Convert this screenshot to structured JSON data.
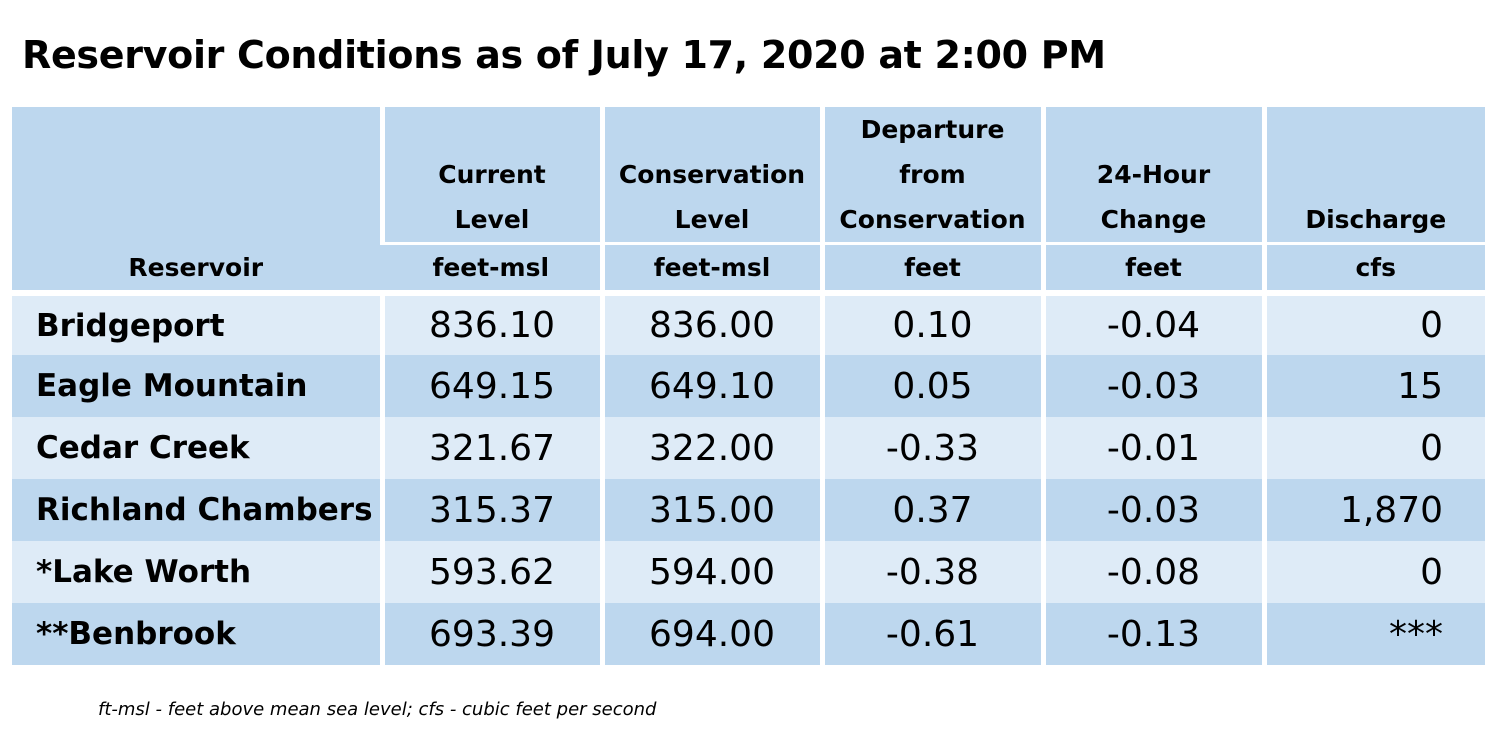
{
  "title": "Reservoir Conditions as of July 17, 2020 at 2:00 PM",
  "table": {
    "headers": [
      {
        "lines": [
          "Reservoir"
        ],
        "unit": ""
      },
      {
        "lines": [
          "Current",
          "Level"
        ],
        "unit": "feet-msl"
      },
      {
        "lines": [
          "Conservation",
          "Level"
        ],
        "unit": "feet-msl"
      },
      {
        "lines": [
          "Departure",
          "from",
          "Conservation"
        ],
        "unit": "feet"
      },
      {
        "lines": [
          "24-Hour",
          "Change"
        ],
        "unit": "feet"
      },
      {
        "lines": [
          "Discharge"
        ],
        "unit": "cfs"
      }
    ],
    "rows": [
      {
        "name": "Bridgeport",
        "current": "836.10",
        "conservation": "836.00",
        "departure": "0.10",
        "change": "-0.04",
        "discharge": "0"
      },
      {
        "name": "Eagle Mountain",
        "current": "649.15",
        "conservation": "649.10",
        "departure": "0.05",
        "change": "-0.03",
        "discharge": "15"
      },
      {
        "name": "Cedar Creek",
        "current": "321.67",
        "conservation": "322.00",
        "departure": "-0.33",
        "change": "-0.01",
        "discharge": "0"
      },
      {
        "name": "Richland Chambers",
        "current": "315.37",
        "conservation": "315.00",
        "departure": "0.37",
        "change": "-0.03",
        "discharge": "1,870"
      },
      {
        "name": "*Lake Worth",
        "current": "593.62",
        "conservation": "594.00",
        "departure": "-0.38",
        "change": "-0.08",
        "discharge": "0"
      },
      {
        "name": "**Benbrook",
        "current": "693.39",
        "conservation": "694.00",
        "departure": "-0.61",
        "change": "-0.13",
        "discharge": "***"
      }
    ]
  },
  "footnote": "ft-msl - feet above mean sea level; cfs - cubic feet per second",
  "colors": {
    "header_bg": "#bdd7ee",
    "row_light": "#deebf7",
    "row_dark": "#bdd7ee"
  }
}
